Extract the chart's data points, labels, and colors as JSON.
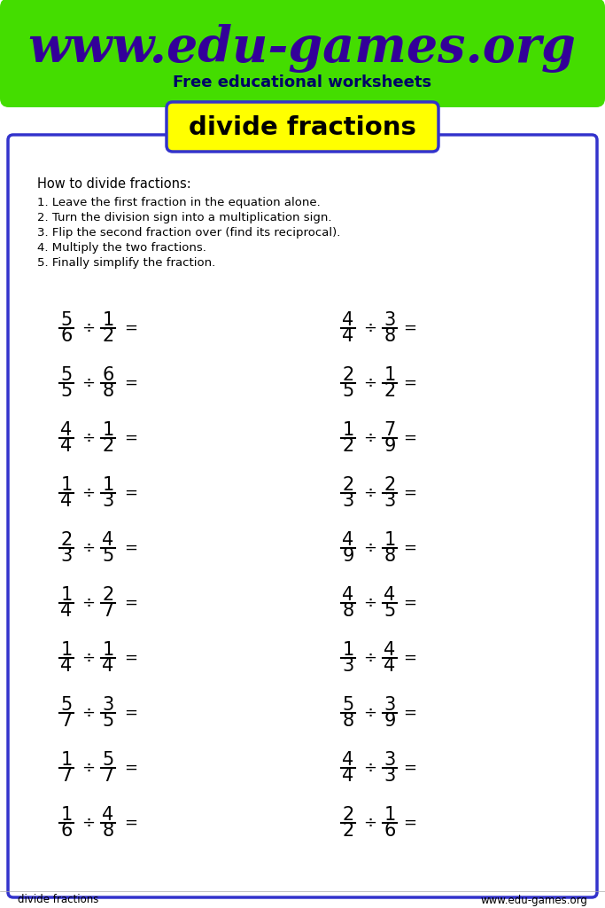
{
  "website": "www.edu-games.org",
  "subtitle": "Free educational worksheets",
  "header_bg": "#44dd00",
  "title": "divide fractions",
  "title_bg": "#ffff00",
  "title_border": "#3333cc",
  "how_to_title": "How to divide fractions:",
  "steps": [
    "1. Leave the first fraction in the equation alone.",
    "2. Turn the division sign into a multiplication sign.",
    "3. Flip the second fraction over (find its reciprocal).",
    "4. Multiply the two fractions.",
    "5. Finally simplify the fraction."
  ],
  "problems_left": [
    [
      "5",
      "6",
      "1",
      "2"
    ],
    [
      "5",
      "5",
      "6",
      "8"
    ],
    [
      "4",
      "4",
      "1",
      "2"
    ],
    [
      "1",
      "4",
      "1",
      "3"
    ],
    [
      "2",
      "3",
      "4",
      "5"
    ],
    [
      "1",
      "4",
      "2",
      "7"
    ],
    [
      "1",
      "4",
      "1",
      "4"
    ],
    [
      "5",
      "7",
      "3",
      "5"
    ],
    [
      "1",
      "7",
      "5",
      "7"
    ],
    [
      "1",
      "6",
      "4",
      "8"
    ]
  ],
  "problems_right": [
    [
      "4",
      "4",
      "3",
      "8"
    ],
    [
      "2",
      "5",
      "1",
      "2"
    ],
    [
      "1",
      "2",
      "7",
      "9"
    ],
    [
      "2",
      "3",
      "2",
      "3"
    ],
    [
      "4",
      "9",
      "1",
      "8"
    ],
    [
      "4",
      "8",
      "4",
      "5"
    ],
    [
      "1",
      "3",
      "4",
      "4"
    ],
    [
      "5",
      "8",
      "3",
      "9"
    ],
    [
      "4",
      "4",
      "3",
      "3"
    ],
    [
      "2",
      "2",
      "1",
      "6"
    ]
  ],
  "footer_left": "divide fractions",
  "footer_right": "www.edu-games.org",
  "page_bg": "#ffffff",
  "box_border": "#3333cc"
}
